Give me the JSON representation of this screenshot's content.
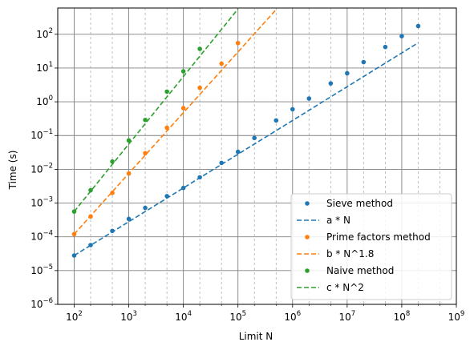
{
  "chart_data": {
    "type": "scatter",
    "title": "",
    "xlabel": "Limit N",
    "ylabel": "Time (s)",
    "x_scale": "log",
    "y_scale": "log",
    "xlim": [
      50,
      1000000000
    ],
    "ylim": [
      1e-06,
      600
    ],
    "grid": true,
    "legend_position": "lower-right",
    "x_major_ticks": [
      {
        "value": 100,
        "base": "10",
        "exp": "2"
      },
      {
        "value": 1000,
        "base": "10",
        "exp": "3"
      },
      {
        "value": 10000,
        "base": "10",
        "exp": "4"
      },
      {
        "value": 100000,
        "base": "10",
        "exp": "5"
      },
      {
        "value": 1000000,
        "base": "10",
        "exp": "6"
      },
      {
        "value": 10000000,
        "base": "10",
        "exp": "7"
      },
      {
        "value": 100000000,
        "base": "10",
        "exp": "8"
      },
      {
        "value": 1000000000,
        "base": "10",
        "exp": "9"
      }
    ],
    "x_minor_grid": [
      200,
      500,
      2000,
      5000,
      20000,
      50000,
      200000,
      500000,
      2000000,
      5000000,
      20000000,
      50000000,
      200000000,
      500000000
    ],
    "y_major_ticks": [
      {
        "value": 1e-06,
        "base": "10",
        "exp": "−6"
      },
      {
        "value": 1e-05,
        "base": "10",
        "exp": "−5"
      },
      {
        "value": 0.0001,
        "base": "10",
        "exp": "−4"
      },
      {
        "value": 0.001,
        "base": "10",
        "exp": "−3"
      },
      {
        "value": 0.01,
        "base": "10",
        "exp": "−2"
      },
      {
        "value": 0.1,
        "base": "10",
        "exp": "−1"
      },
      {
        "value": 1,
        "base": "10",
        "exp": "0"
      },
      {
        "value": 10,
        "base": "10",
        "exp": "1"
      },
      {
        "value": 100,
        "base": "10",
        "exp": "2"
      }
    ],
    "series": [
      {
        "name": "Sieve method",
        "kind": "points",
        "color": "#1f77b4",
        "x": [
          100,
          200,
          500,
          1000,
          2000,
          5000,
          10000,
          20000,
          50000,
          100000,
          200000,
          500000,
          1000000,
          2000000,
          5000000,
          10000000,
          20000000,
          50000000,
          100000000,
          200000000
        ],
        "y": [
          2.8e-05,
          5.7e-05,
          0.00015,
          0.00034,
          0.00072,
          0.0016,
          0.0028,
          0.0058,
          0.0155,
          0.033,
          0.085,
          0.28,
          0.6,
          1.25,
          3.5,
          7.0,
          15.0,
          42.0,
          88.0,
          175.0
        ]
      },
      {
        "name": "a * N",
        "kind": "line",
        "color": "#1f77b4",
        "x": [
          100,
          200000000
        ],
        "y": [
          2.8e-05,
          56
        ]
      },
      {
        "name": "Prime factors method",
        "kind": "points",
        "color": "#ff7f0e",
        "x": [
          100,
          200,
          500,
          1000,
          2000,
          5000,
          10000,
          20000,
          50000,
          100000
        ],
        "y": [
          0.00012,
          0.0004,
          0.002,
          0.0075,
          0.03,
          0.17,
          0.65,
          2.6,
          13.5,
          55.0
        ]
      },
      {
        "name": "b * N^1.8",
        "kind": "line",
        "color": "#ff7f0e",
        "x": [
          100,
          500000
        ],
        "y": [
          0.00012,
          540
        ]
      },
      {
        "name": "Naive method",
        "kind": "points",
        "color": "#2ca02c",
        "x": [
          100,
          200,
          500,
          1000,
          2000,
          5000,
          10000,
          20000
        ],
        "y": [
          0.00056,
          0.0024,
          0.017,
          0.072,
          0.29,
          2.0,
          8.0,
          37.0
        ]
      },
      {
        "name": "c * N^2",
        "kind": "line",
        "color": "#2ca02c",
        "x": [
          100,
          100000
        ],
        "y": [
          0.00056,
          560
        ]
      }
    ]
  }
}
